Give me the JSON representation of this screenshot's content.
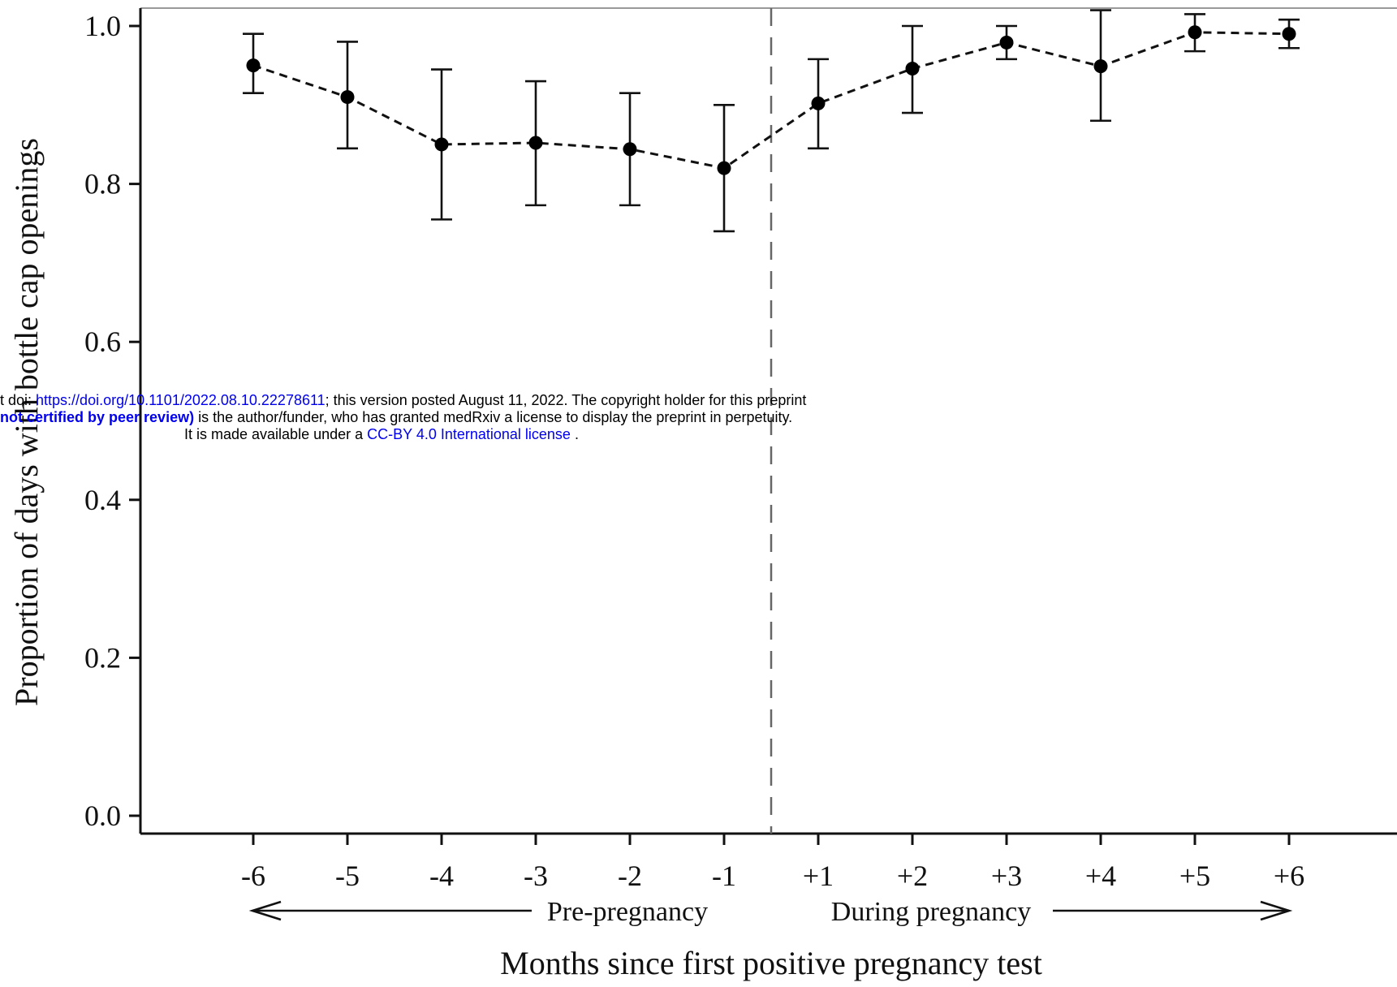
{
  "chart_data": {
    "type": "line",
    "title": "",
    "xlabel": "Months since first positive pregnancy test",
    "ylabel": "Proportion of days with bottle cap openings",
    "categories": [
      "-6",
      "-5",
      "-4",
      "-3",
      "-2",
      "-1",
      "+1",
      "+2",
      "+3",
      "+4",
      "+5",
      "+6"
    ],
    "series": [
      {
        "values": [
          0.95,
          0.91,
          0.85,
          0.852,
          0.844,
          0.82,
          0.902,
          0.946,
          0.979,
          0.949,
          0.992,
          0.99
        ],
        "lower": [
          0.915,
          0.845,
          0.755,
          0.773,
          0.773,
          0.74,
          0.845,
          0.89,
          0.958,
          0.88,
          0.968,
          0.972
        ],
        "upper": [
          0.99,
          0.98,
          0.945,
          0.93,
          0.915,
          0.9,
          0.958,
          1.0,
          1.0,
          1.02,
          1.015,
          1.008
        ]
      }
    ],
    "yticks": [
      "0.0",
      "0.2",
      "0.4",
      "0.6",
      "0.8",
      "1.0"
    ],
    "ylim": [
      -0.022,
      1.022
    ],
    "divider_between": [
      "-1",
      "+1"
    ],
    "phase_labels": {
      "pre": "Pre-pregnancy",
      "during": "During pregnancy"
    },
    "grid": false,
    "legend": "none"
  },
  "watermark": {
    "line1_prefix": "t doi: ",
    "line1_link": "https://doi.org/10.1101/2022.08.10.22278611",
    "line1_suffix": "; this version posted August 11, 2022. The copyright holder for this preprint",
    "line2_bold": "not certified by peer review)",
    "line2_suffix": " is the author/funder, who has granted medRxiv a license to display the preprint in perpetuity.",
    "line3_prefix": "It is made available under a ",
    "line3_link": "CC-BY 4.0 International license",
    "line3_suffix": " ."
  }
}
